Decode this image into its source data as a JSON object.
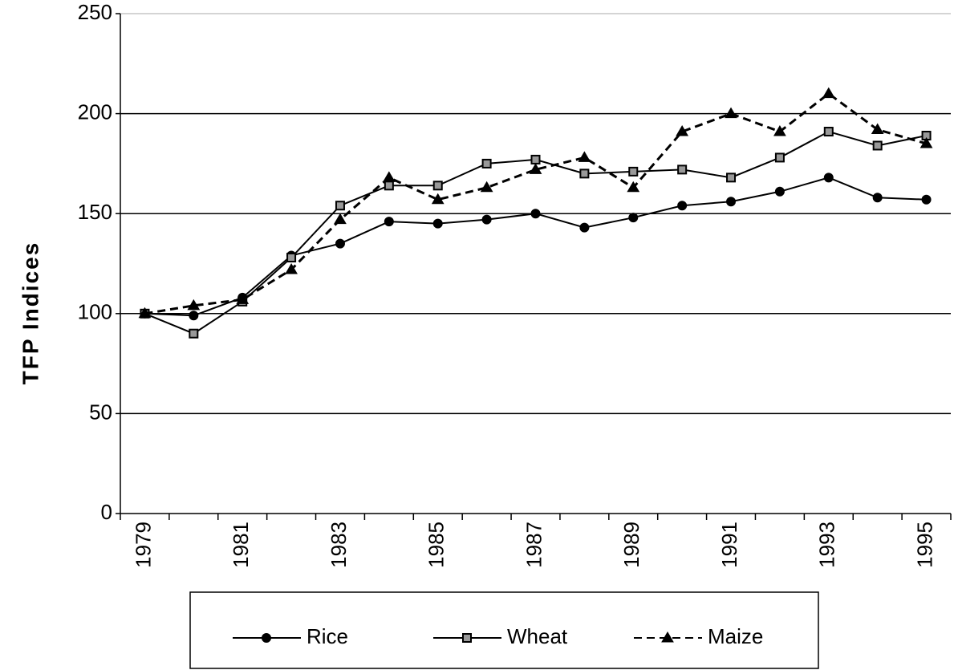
{
  "chart_data": {
    "type": "line",
    "y_label": "TFP Indices",
    "categories": [
      "1979",
      null,
      "1981",
      null,
      "1983",
      null,
      "1985",
      null,
      "1987",
      null,
      "1989",
      null,
      "1991",
      null,
      "1993",
      null,
      "1995"
    ],
    "series": [
      {
        "name": "Rice",
        "color": "#000000",
        "marker": "circle",
        "dashed": false,
        "values": [
          100,
          99,
          108,
          129,
          135,
          146,
          145,
          147,
          150,
          143,
          148,
          154,
          156,
          161,
          168,
          158,
          157
        ]
      },
      {
        "name": "Wheat",
        "color": "#000000",
        "marker": "square",
        "dashed": false,
        "values": [
          100,
          90,
          106,
          128,
          154,
          164,
          164,
          175,
          177,
          170,
          171,
          172,
          168,
          178,
          191,
          184,
          189
        ]
      },
      {
        "name": "Maize",
        "color": "#000000",
        "marker": "triangle",
        "dashed": true,
        "values": [
          100,
          104,
          107,
          122,
          147,
          168,
          157,
          163,
          172,
          178,
          163,
          191,
          200,
          191,
          210,
          192,
          185
        ]
      }
    ],
    "ylim": [
      0,
      250
    ],
    "yticks": [
      0,
      50,
      100,
      150,
      200,
      250
    ],
    "grid": true,
    "legend": "bottom"
  }
}
